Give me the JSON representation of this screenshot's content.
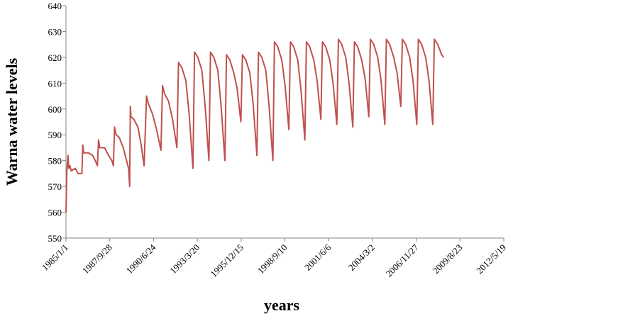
{
  "chart_data": {
    "type": "line",
    "ylabel": "Warna water levels",
    "xlabel": "years",
    "xlim": [
      "1985/1/1",
      "2012/5/19"
    ],
    "xticks": [
      "1985/1/1",
      "1987/9/28",
      "1990/6/24",
      "1993/3/20",
      "1995/12/15",
      "1998/9/10",
      "2001/6/6",
      "2004/3/2",
      "2006/11/27",
      "2009/8/23",
      "2012/5/19"
    ],
    "ylim": [
      550,
      640
    ],
    "yticks": [
      550,
      560,
      570,
      580,
      590,
      600,
      610,
      620,
      630,
      640
    ],
    "x": [
      "1985/1/1",
      "1985/1/20",
      "1985/2/15",
      "1985/3/5",
      "1985/4/1",
      "1985/5/1",
      "1985/8/1",
      "1985/10/1",
      "1985/12/31",
      "1986/1/20",
      "1986/2/10",
      "1986/6/1",
      "1986/9/1",
      "1986/11/1",
      "1986/12/20",
      "1987/1/15",
      "1987/2/10",
      "1987/6/1",
      "1987/9/1",
      "1987/11/15",
      "1987/12/20",
      "1988/1/15",
      "1988/2/20",
      "1988/5/1",
      "1988/8/1",
      "1988/10/15",
      "1988/12/1",
      "1988/12/25",
      "1989/1/10",
      "1989/1/25",
      "1989/4/1",
      "1989/7/1",
      "1989/9/15",
      "1989/11/20",
      "1990/1/15",
      "1990/3/1",
      "1990/6/1",
      "1990/9/1",
      "1990/12/10",
      "1991/1/15",
      "1991/3/1",
      "1991/6/1",
      "1991/9/1",
      "1991/12/10",
      "1992/1/15",
      "1992/4/1",
      "1992/7/1",
      "1992/9/15",
      "1992/12/10",
      "1993/1/15",
      "1993/4/1",
      "1993/7/1",
      "1993/9/15",
      "1993/12/10",
      "1994/1/15",
      "1994/4/1",
      "1994/7/1",
      "1994/9/15",
      "1994/12/10",
      "1995/1/15",
      "1995/4/1",
      "1995/7/1",
      "1995/9/15",
      "1995/12/10",
      "1996/1/15",
      "1996/4/1",
      "1996/7/1",
      "1996/9/15",
      "1996/12/10",
      "1997/1/15",
      "1997/4/1",
      "1997/7/1",
      "1997/9/15",
      "1997/12/10",
      "1998/1/15",
      "1998/4/1",
      "1998/7/1",
      "1998/9/15",
      "1998/12/10",
      "1999/1/15",
      "1999/4/1",
      "1999/7/1",
      "1999/9/15",
      "1999/12/10",
      "2000/1/15",
      "2000/4/1",
      "2000/7/1",
      "2000/9/15",
      "2000/12/10",
      "2001/1/15",
      "2001/4/1",
      "2001/7/1",
      "2001/9/15",
      "2001/12/10",
      "2002/1/15",
      "2002/4/1",
      "2002/7/1",
      "2002/9/15",
      "2002/12/10",
      "2003/1/15",
      "2003/4/1",
      "2003/7/1",
      "2003/9/15",
      "2003/12/10",
      "2004/1/15",
      "2004/4/1",
      "2004/7/1",
      "2004/9/15",
      "2004/12/10",
      "2005/1/15",
      "2005/4/1",
      "2005/7/1",
      "2005/9/15",
      "2005/12/10",
      "2006/1/15",
      "2006/4/1",
      "2006/7/1",
      "2006/9/15",
      "2006/12/10",
      "2007/1/15",
      "2007/4/1",
      "2007/7/1",
      "2007/9/15",
      "2007/12/10",
      "2008/1/15",
      "2008/4/1",
      "2008/7/1",
      "2008/8/15"
    ],
    "series": [
      {
        "color": "#c0504d",
        "values": [
          560,
          576,
          582,
          577,
          578,
          576,
          577,
          575,
          575,
          586,
          583,
          583,
          582,
          580,
          578,
          588,
          585,
          585,
          582,
          580,
          578,
          593,
          590,
          589,
          585,
          580,
          577,
          570,
          601,
          597,
          596,
          593,
          586,
          578,
          605,
          602,
          598,
          592,
          584,
          609,
          606,
          603,
          596,
          585,
          618,
          616,
          611,
          598,
          577,
          622,
          620,
          615,
          601,
          580,
          622,
          620,
          615,
          601,
          580,
          621,
          619,
          614,
          608,
          595,
          621,
          619,
          614,
          602,
          582,
          622,
          620,
          615,
          601,
          580,
          626,
          624,
          619,
          609,
          592,
          626,
          624,
          619,
          607,
          588,
          626,
          624,
          619,
          611,
          596,
          626,
          624,
          619,
          610,
          594,
          627,
          625,
          620,
          610,
          593,
          626,
          624,
          619,
          612,
          597,
          627,
          625,
          620,
          611,
          594,
          627,
          625,
          620,
          614,
          601,
          627,
          625,
          620,
          611,
          594,
          627,
          625,
          620,
          611,
          594,
          627,
          625,
          621,
          620
        ]
      }
    ]
  }
}
